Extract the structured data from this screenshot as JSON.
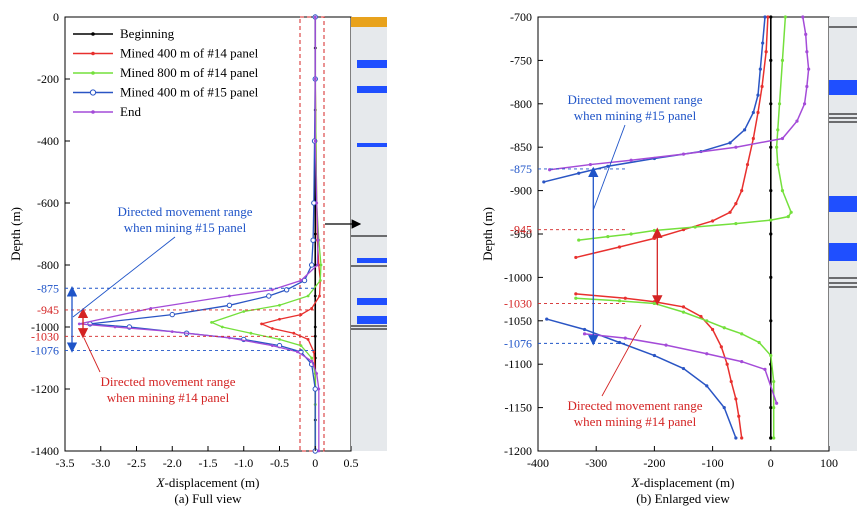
{
  "colors": {
    "beginning": "#000000",
    "mined400_14": "#e8302e",
    "mined800_14": "#74e03c",
    "mined400_15": "#2a55c4",
    "end": "#a44bd8",
    "annot_blue": "#1f54c8",
    "annot_red": "#d42424",
    "strata_bg": "#e6e9ec",
    "strata_blue": "#1f4fff",
    "strata_orange": "#e8a21c"
  },
  "chart_data": [
    {
      "type": "line",
      "caption": "(a) Full view",
      "xlabel_italic": "X",
      "xlabel_rest": "-displacement (m)",
      "ylabel": "Depth (m)",
      "xlim": [
        -3.5,
        0.5
      ],
      "ylim": [
        -1400,
        0
      ],
      "xticks": [
        "-3.5",
        "-3.0",
        "-2.5",
        "-2.0",
        "-1.5",
        "-1.0",
        "-0.5",
        "0",
        "0.5"
      ],
      "yticks": [
        "0",
        "-200",
        "-400",
        "-600",
        "-800",
        "-1000",
        "-1200",
        "-1400"
      ],
      "extra_yticks": [
        {
          "value": -875,
          "label": "-875",
          "color": "blue"
        },
        {
          "value": -945,
          "label": "-945",
          "color": "red"
        },
        {
          "value": -1030,
          "label": "-1030",
          "color": "red"
        },
        {
          "value": -1076,
          "label": "-1076",
          "color": "blue"
        }
      ],
      "legend": [
        {
          "name": "Beginning",
          "series": "beginning"
        },
        {
          "name": "Mined 400 m of #14 panel",
          "series": "mined400_14"
        },
        {
          "name": "Mined 800 m of #14 panel",
          "series": "mined800_14"
        },
        {
          "name": "Mined 400 m of #15 panel",
          "series": "mined400_15"
        },
        {
          "name": "End",
          "series": "end"
        }
      ],
      "series": [
        {
          "key": "beginning",
          "x": [
            0,
            0,
            0,
            0,
            0,
            0,
            0,
            0,
            0,
            0,
            0,
            0,
            0,
            0,
            0,
            0
          ],
          "y": [
            0,
            -100,
            -200,
            -300,
            -400,
            -500,
            -600,
            -700,
            -800,
            -900,
            -1000,
            -1030,
            -1100,
            -1200,
            -1300,
            -1400
          ]
        },
        {
          "key": "mined400_14",
          "x": [
            0,
            0,
            0.01,
            0.02,
            0.03,
            0.05,
            0.07,
            0.06,
            -0.05,
            -0.2,
            -0.5,
            -0.75,
            -0.6,
            -0.3,
            -0.1,
            -0.02,
            0,
            0,
            0
          ],
          "y": [
            0,
            -200,
            -400,
            -600,
            -720,
            -800,
            -850,
            -900,
            -940,
            -960,
            -975,
            -990,
            -1005,
            -1020,
            -1040,
            -1080,
            -1150,
            -1250,
            -1400
          ]
        },
        {
          "key": "mined800_14",
          "x": [
            0,
            0,
            0.01,
            0.02,
            0.05,
            0.08,
            0.07,
            -0.1,
            -0.5,
            -1.0,
            -1.45,
            -1.3,
            -0.9,
            -0.5,
            -0.2,
            -0.05,
            0,
            0,
            0
          ],
          "y": [
            0,
            -200,
            -400,
            -600,
            -720,
            -800,
            -850,
            -900,
            -930,
            -950,
            -985,
            -1000,
            -1020,
            -1040,
            -1060,
            -1100,
            -1150,
            -1250,
            -1400
          ]
        },
        {
          "key": "mined400_15",
          "x": [
            0,
            0,
            -0.01,
            -0.02,
            -0.03,
            -0.05,
            -0.15,
            -0.4,
            -0.65,
            -1.2,
            -2.0,
            -3.15,
            -2.6,
            -1.8,
            -1.0,
            -0.5,
            -0.2,
            -0.05,
            0,
            0
          ],
          "y": [
            0,
            -200,
            -400,
            -600,
            -720,
            -800,
            -850,
            -880,
            -900,
            -930,
            -960,
            -990,
            -1000,
            -1020,
            -1040,
            -1060,
            -1080,
            -1120,
            -1200,
            -1400
          ]
        },
        {
          "key": "end",
          "x": [
            0,
            0,
            0,
            0.02,
            0.04,
            0.03,
            -0.2,
            -0.6,
            -1.2,
            -2.3,
            -3.3,
            -2.8,
            -2.0,
            -1.2,
            -0.6,
            -0.25,
            -0.05,
            0.02,
            0.05,
            0.05
          ],
          "y": [
            0,
            -200,
            -400,
            -600,
            -720,
            -800,
            -850,
            -880,
            -900,
            -940,
            -990,
            -1000,
            -1015,
            -1035,
            -1060,
            -1080,
            -1110,
            -1150,
            -1200,
            -1400
          ]
        }
      ],
      "annotations": [
        {
          "text": "Directed movement range",
          "text2": "when mining #15 panel",
          "color": "blue"
        },
        {
          "text": "Directed movement range",
          "text2": "when mining #14 panel",
          "color": "red"
        }
      ]
    },
    {
      "type": "line",
      "caption": "(b) Enlarged view",
      "xlabel_italic": "X",
      "xlabel_rest": "-displacement (m)",
      "ylabel": "Depth (m)",
      "xlim": [
        -400,
        100
      ],
      "ylim": [
        -1200,
        -700
      ],
      "xticks": [
        "-400",
        "-300",
        "-200",
        "-100",
        "0",
        "100"
      ],
      "yticks": [
        "-700",
        "-750",
        "-800",
        "-850",
        "-900",
        "-950",
        "-1000",
        "-1050",
        "-1100",
        "-1150",
        "-1200"
      ],
      "extra_yticks": [
        {
          "value": -875,
          "label": "-875",
          "color": "blue"
        },
        {
          "value": -945,
          "label": "-945",
          "color": "red"
        },
        {
          "value": -1030,
          "label": "-1030",
          "color": "red"
        },
        {
          "value": -1076,
          "label": "-1076",
          "color": "blue"
        }
      ],
      "series": [
        {
          "key": "beginning",
          "x": [
            0,
            0,
            0,
            0,
            0,
            0,
            0,
            0,
            0,
            0,
            0,
            0
          ],
          "y": [
            -700,
            -750,
            -800,
            -850,
            -900,
            -950,
            -1000,
            -1050,
            -1100,
            -1150,
            -1185,
            -1185
          ]
        },
        {
          "key": "mined400_14",
          "x": [
            -5,
            -8,
            -15,
            -22,
            -30,
            -40,
            -50,
            -60,
            -70,
            -100,
            -150,
            -200,
            -260,
            -335
          ],
          "y": [
            -700,
            -740,
            -780,
            -810,
            -840,
            -870,
            -900,
            -915,
            -925,
            -935,
            -945,
            -955,
            -965,
            -977
          ]
        },
        {
          "key": "mined400_14_lower",
          "x": [
            -335,
            -250,
            -200,
            -150,
            -120,
            -100,
            -85,
            -75,
            -68,
            -60,
            -55,
            -50
          ],
          "y": [
            -1019,
            -1024,
            -1028,
            -1034,
            -1045,
            -1060,
            -1080,
            -1100,
            -1120,
            -1140,
            -1160,
            -1185
          ]
        },
        {
          "key": "mined800_14",
          "x": [
            25,
            20,
            15,
            12,
            10,
            12,
            20,
            35,
            30,
            0,
            -60,
            -130,
            -200,
            -240,
            -280,
            -330
          ],
          "y": [
            -700,
            -750,
            -800,
            -830,
            -850,
            -870,
            -900,
            -925,
            -930,
            -934,
            -938,
            -942,
            -946,
            -950,
            -953,
            -957
          ]
        },
        {
          "key": "mined800_14_lower",
          "x": [
            -335,
            -260,
            -200,
            -150,
            -110,
            -80,
            -50,
            -20,
            0,
            5,
            5,
            5
          ],
          "y": [
            -1024,
            -1027,
            -1030,
            -1040,
            -1050,
            -1058,
            -1065,
            -1075,
            -1090,
            -1120,
            -1150,
            -1185
          ]
        },
        {
          "key": "mined400_15",
          "x": [
            -10,
            -14,
            -18,
            -22,
            -30,
            -45,
            -70,
            -120,
            -200,
            -280,
            -330,
            -390
          ],
          "y": [
            -700,
            -730,
            -760,
            -790,
            -810,
            -830,
            -845,
            -855,
            -863,
            -872,
            -880,
            -890
          ]
        },
        {
          "key": "mined400_15_lower",
          "x": [
            -385,
            -320,
            -260,
            -200,
            -150,
            -110,
            -80,
            -60
          ],
          "y": [
            -1048,
            -1060,
            -1075,
            -1090,
            -1105,
            -1125,
            -1150,
            -1185
          ]
        },
        {
          "key": "end",
          "x": [
            55,
            60,
            62,
            65,
            62,
            58,
            45,
            20,
            -60,
            -150,
            -240,
            -310,
            -380
          ],
          "y": [
            -700,
            -720,
            -740,
            -760,
            -780,
            -800,
            -820,
            -840,
            -850,
            -858,
            -865,
            -870,
            -876
          ]
        },
        {
          "key": "end_lower",
          "x": [
            -320,
            -250,
            -180,
            -110,
            -50,
            -10,
            10
          ],
          "y": [
            -1065,
            -1070,
            -1078,
            -1088,
            -1097,
            -1106,
            -1145
          ]
        }
      ],
      "annotations": [
        {
          "text": "Directed movement range",
          "text2": "when mining #15 panel",
          "color": "blue"
        },
        {
          "text": "Directed movement range",
          "text2": "when mining #14 panel",
          "color": "red"
        }
      ]
    }
  ]
}
